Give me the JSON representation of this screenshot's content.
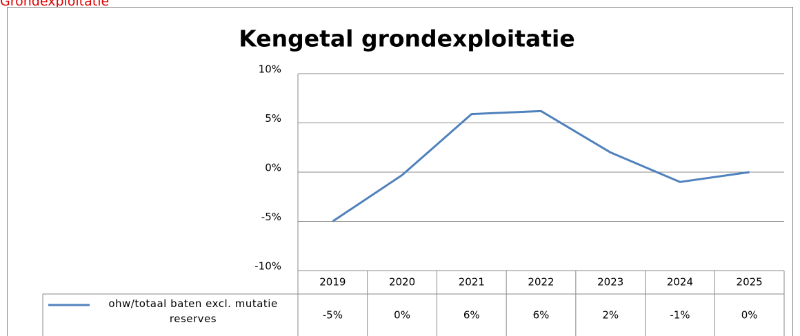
{
  "heading": "Grondexploitatie",
  "chart_data": {
    "type": "line",
    "title": "Kengetal grondexploitatie",
    "categories": [
      "2019",
      "2020",
      "2021",
      "2022",
      "2023",
      "2024",
      "2025"
    ],
    "series": [
      {
        "name": "ohw/totaal baten excl. mutatie reserves",
        "color": "#4f81bd",
        "values": [
          -5,
          -0.3,
          5.9,
          6.2,
          2.0,
          -1.0,
          0.0
        ],
        "value_labels": [
          "-5%",
          "0%",
          "6%",
          "6%",
          "2%",
          "-1%",
          "0%"
        ]
      }
    ],
    "ylim": [
      -10,
      10
    ],
    "yticks": [
      {
        "value": -10,
        "label": "-10%"
      },
      {
        "value": -5,
        "label": "-5%"
      },
      {
        "value": 0,
        "label": "0%"
      },
      {
        "value": 5,
        "label": "5%"
      },
      {
        "value": 10,
        "label": "10%"
      }
    ],
    "grid": true,
    "data_table": true
  }
}
